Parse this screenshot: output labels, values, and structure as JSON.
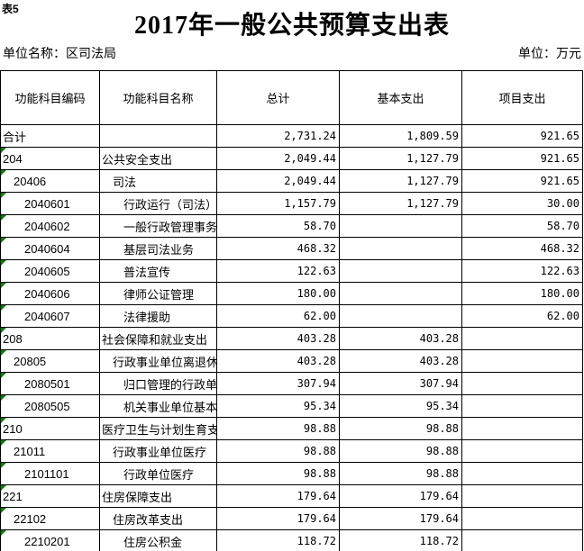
{
  "sheet_label": "表5",
  "title": "2017年一般公共预算支出表",
  "unit_name": "单位名称：区司法局",
  "unit": "单位：万元",
  "colors": {
    "flag_green": "#008000",
    "border": "#000000",
    "background": "#ffffff"
  },
  "table": {
    "columns": [
      "功能科目编码",
      "功能科目名称",
      "总计",
      "基本支出",
      "项目支出"
    ],
    "rows": [
      {
        "code": "合计",
        "name": "",
        "total": "2,731.24",
        "basic": "1,809.59",
        "project": "921.65",
        "indent": 0,
        "flag": false
      },
      {
        "code": "204",
        "name": "公共安全支出",
        "total": "2,049.44",
        "basic": "1,127.79",
        "project": "921.65",
        "indent": 0,
        "flag": true
      },
      {
        "code": "20406",
        "name": "司法",
        "total": "2,049.44",
        "basic": "1,127.79",
        "project": "921.65",
        "indent": 1,
        "flag": true
      },
      {
        "code": "2040601",
        "name": "行政运行（司法）",
        "total": "1,157.79",
        "basic": "1,127.79",
        "project": "30.00",
        "indent": 2,
        "flag": true
      },
      {
        "code": "2040602",
        "name": "一般行政管理事务",
        "total": "58.70",
        "basic": "",
        "project": "58.70",
        "indent": 2,
        "flag": true
      },
      {
        "code": "2040604",
        "name": "基层司法业务",
        "total": "468.32",
        "basic": "",
        "project": "468.32",
        "indent": 2,
        "flag": true
      },
      {
        "code": "2040605",
        "name": "普法宣传",
        "total": "122.63",
        "basic": "",
        "project": "122.63",
        "indent": 2,
        "flag": true
      },
      {
        "code": "2040606",
        "name": "律师公证管理",
        "total": "180.00",
        "basic": "",
        "project": "180.00",
        "indent": 2,
        "flag": true
      },
      {
        "code": "2040607",
        "name": "法律援助",
        "total": "62.00",
        "basic": "",
        "project": "62.00",
        "indent": 2,
        "flag": true
      },
      {
        "code": "208",
        "name": "社会保障和就业支出",
        "total": "403.28",
        "basic": "403.28",
        "project": "",
        "indent": 0,
        "flag": true
      },
      {
        "code": "20805",
        "name": "行政事业单位离退休",
        "total": "403.28",
        "basic": "403.28",
        "project": "",
        "indent": 1,
        "flag": true
      },
      {
        "code": "2080501",
        "name": "归口管理的行政单位离退休",
        "total": "307.94",
        "basic": "307.94",
        "project": "",
        "indent": 2,
        "flag": true
      },
      {
        "code": "2080505",
        "name": "机关事业单位基本养老保险缴费支出",
        "total": "95.34",
        "basic": "95.34",
        "project": "",
        "indent": 2,
        "flag": true
      },
      {
        "code": "210",
        "name": "医疗卫生与计划生育支出",
        "total": "98.88",
        "basic": "98.88",
        "project": "",
        "indent": 0,
        "flag": true
      },
      {
        "code": "21011",
        "name": "行政事业单位医疗",
        "total": "98.88",
        "basic": "98.88",
        "project": "",
        "indent": 1,
        "flag": true
      },
      {
        "code": "2101101",
        "name": "行政单位医疗",
        "total": "98.88",
        "basic": "98.88",
        "project": "",
        "indent": 2,
        "flag": true
      },
      {
        "code": "221",
        "name": "住房保障支出",
        "total": "179.64",
        "basic": "179.64",
        "project": "",
        "indent": 0,
        "flag": true
      },
      {
        "code": "22102",
        "name": "住房改革支出",
        "total": "179.64",
        "basic": "179.64",
        "project": "",
        "indent": 1,
        "flag": true
      },
      {
        "code": "2210201",
        "name": "住房公积金",
        "total": "118.72",
        "basic": "118.72",
        "project": "",
        "indent": 2,
        "flag": true
      }
    ]
  }
}
